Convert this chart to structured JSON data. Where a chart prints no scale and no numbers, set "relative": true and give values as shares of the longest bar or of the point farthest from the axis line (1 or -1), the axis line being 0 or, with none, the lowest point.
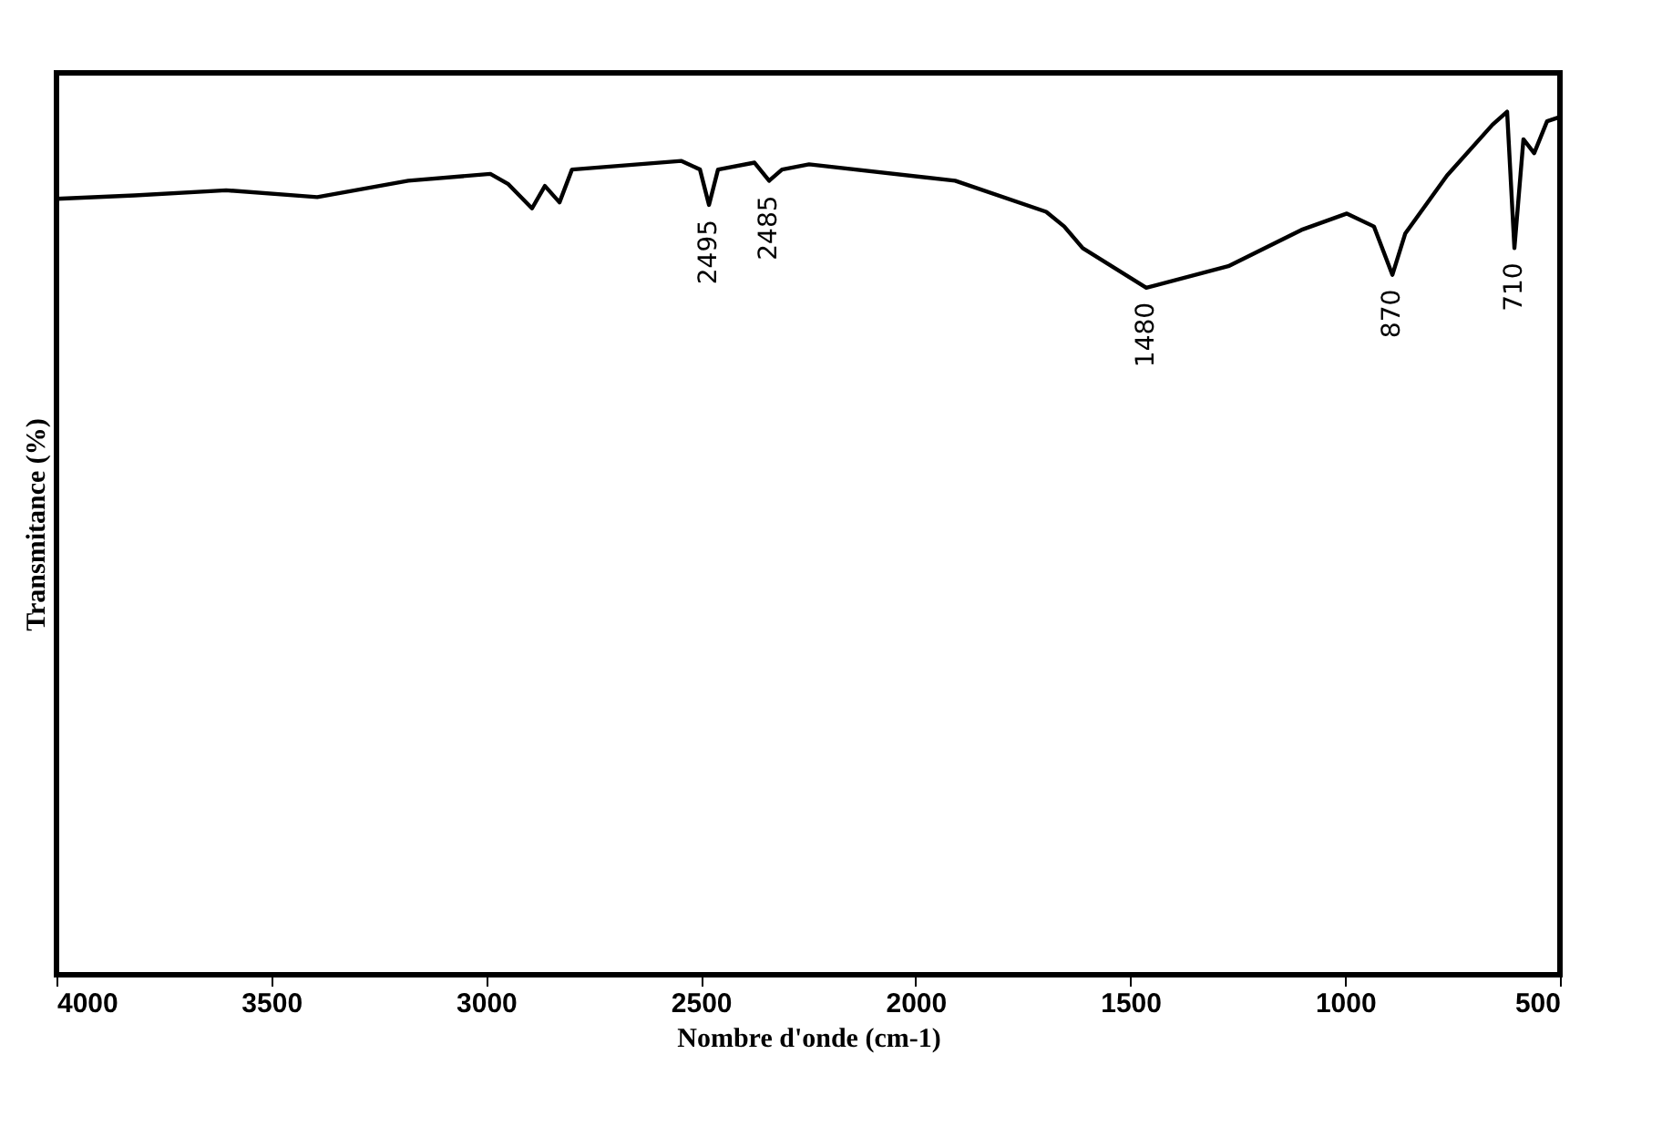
{
  "chart_data": {
    "type": "line",
    "relative": true,
    "xlabel": "Nombre d'onde (cm-1)",
    "ylabel": "Transmitance (%)",
    "xlim": [
      4000,
      500
    ],
    "xticks": [
      4000,
      3500,
      3000,
      2500,
      2000,
      1500,
      1000,
      500
    ],
    "tick_labels": "x",
    "grid": false,
    "legend": false,
    "marker": "none",
    "line_style": "solid",
    "series": [
      {
        "color": "#000000",
        "x": [
          4000,
          3818,
          3605,
          3393,
          3181,
          2990,
          2948,
          2893,
          2863,
          2829,
          2800,
          2545,
          2502,
          2481,
          2460,
          2375,
          2341,
          2311,
          2248,
          1908,
          1696,
          1654,
          1611,
          1463,
          1272,
          1102,
          996,
          933,
          890,
          860,
          763,
          657,
          623,
          606,
          585,
          560,
          530,
          500
        ],
        "values": [
          0.899,
          0.903,
          0.909,
          0.901,
          0.92,
          0.928,
          0.916,
          0.888,
          0.914,
          0.895,
          0.933,
          0.943,
          0.933,
          0.892,
          0.933,
          0.941,
          0.92,
          0.933,
          0.939,
          0.92,
          0.884,
          0.867,
          0.842,
          0.796,
          0.821,
          0.863,
          0.882,
          0.867,
          0.811,
          0.859,
          0.926,
          0.985,
          1.0,
          0.842,
          0.968,
          0.952,
          0.989,
          0.994
        ]
      }
    ],
    "annotations": [
      {
        "text": "2495",
        "x": 2481,
        "y": 0.892
      },
      {
        "text": "2485",
        "x": 2341,
        "y": 0.92
      },
      {
        "text": "1480",
        "x": 1463,
        "y": 0.796
      },
      {
        "text": "870",
        "x": 890,
        "y": 0.811
      },
      {
        "text": "710",
        "x": 606,
        "y": 0.842
      }
    ]
  }
}
